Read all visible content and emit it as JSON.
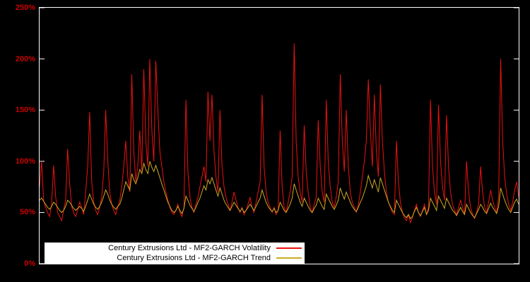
{
  "chart_data": {
    "type": "line",
    "title": "",
    "xlabel": "",
    "ylabel": "",
    "ylim": [
      0,
      250
    ],
    "grid": false,
    "background_color": "#000000",
    "frame_color": "#ffffff",
    "axis_label_color": "#cc0000",
    "yticks": [
      {
        "value": 0,
        "label": "0%"
      },
      {
        "value": 50,
        "label": "50%"
      },
      {
        "value": 100,
        "label": "100%"
      },
      {
        "value": 150,
        "label": "150%"
      },
      {
        "value": 200,
        "label": "200%"
      },
      {
        "value": 250,
        "label": "250%"
      }
    ],
    "legend": {
      "position": "bottom-left-inside",
      "background": "#ffffff",
      "entries": [
        {
          "label": "Century Extrusions Ltd - MF2-GARCH Volatility",
          "color": "#ee1111"
        },
        {
          "label": "Century Extrusions Ltd - MF2-GARCH Trend",
          "color": "#ccaa22"
        }
      ]
    },
    "series": [
      {
        "name": "Century Extrusions Ltd - MF2-GARCH Volatility",
        "color": "#ee1111",
        "unit": "%",
        "values": [
          75,
          100,
          62,
          55,
          50,
          46,
          58,
          96,
          66,
          50,
          46,
          42,
          52,
          62,
          112,
          78,
          56,
          50,
          46,
          52,
          60,
          55,
          48,
          70,
          95,
          148,
          80,
          60,
          52,
          48,
          55,
          65,
          90,
          150,
          100,
          70,
          58,
          52,
          48,
          55,
          62,
          75,
          95,
          120,
          85,
          70,
          185,
          110,
          80,
          95,
          130,
          90,
          190,
          120,
          95,
          200,
          130,
          100,
          198,
          150,
          110,
          95,
          80,
          70,
          62,
          55,
          50,
          48,
          52,
          58,
          50,
          46,
          55,
          160,
          90,
          65,
          55,
          50,
          58,
          65,
          75,
          85,
          95,
          80,
          168,
          120,
          165,
          110,
          85,
          70,
          150,
          95,
          75,
          65,
          58,
          52,
          60,
          70,
          62,
          55,
          50,
          55,
          48,
          52,
          58,
          65,
          55,
          50,
          60,
          70,
          80,
          165,
          95,
          70,
          60,
          55,
          50,
          55,
          48,
          52,
          130,
          75,
          55,
          50,
          60,
          70,
          85,
          215,
          120,
          85,
          70,
          60,
          135,
          90,
          70,
          55,
          50,
          58,
          65,
          140,
          95,
          70,
          60,
          160,
          100,
          75,
          60,
          55,
          65,
          80,
          185,
          120,
          90,
          150,
          95,
          70,
          60,
          55,
          50,
          58,
          70,
          85,
          100,
          120,
          180,
          130,
          95,
          165,
          110,
          85,
          175,
          120,
          90,
          70,
          60,
          55,
          50,
          48,
          120,
          80,
          60,
          50,
          45,
          42,
          48,
          40,
          45,
          52,
          58,
          50,
          46,
          52,
          58,
          48,
          55,
          160,
          95,
          70,
          58,
          155,
          100,
          75,
          62,
          145,
          95,
          70,
          58,
          52,
          48,
          55,
          62,
          55,
          48,
          100,
          70,
          55,
          48,
          44,
          50,
          58,
          95,
          70,
          55,
          50,
          60,
          72,
          62,
          55,
          50,
          65,
          200,
          120,
          85,
          68,
          58,
          52,
          60,
          72,
          80,
          65
        ]
      },
      {
        "name": "Century Extrusions Ltd - MF2-GARCH Trend",
        "color": "#ccaa22",
        "unit": "%",
        "values": [
          62,
          64,
          61,
          58,
          55,
          53,
          56,
          60,
          58,
          55,
          52,
          50,
          52,
          56,
          62,
          60,
          57,
          54,
          52,
          54,
          56,
          54,
          51,
          56,
          62,
          68,
          63,
          58,
          55,
          53,
          56,
          60,
          66,
          72,
          68,
          62,
          58,
          55,
          53,
          56,
          58,
          64,
          72,
          80,
          76,
          72,
          88,
          82,
          78,
          84,
          92,
          88,
          98,
          92,
          88,
          100,
          94,
          90,
          96,
          90,
          84,
          78,
          72,
          66,
          60,
          56,
          52,
          50,
          52,
          56,
          52,
          49,
          54,
          66,
          62,
          57,
          54,
          51,
          55,
          60,
          64,
          70,
          76,
          72,
          82,
          78,
          84,
          78,
          72,
          66,
          74,
          68,
          62,
          58,
          55,
          52,
          56,
          60,
          57,
          54,
          51,
          54,
          50,
          52,
          55,
          58,
          55,
          52,
          56,
          60,
          64,
          72,
          66,
          60,
          56,
          53,
          51,
          54,
          50,
          52,
          60,
          56,
          52,
          50,
          54,
          58,
          64,
          78,
          72,
          66,
          60,
          56,
          64,
          60,
          56,
          52,
          50,
          54,
          57,
          64,
          60,
          56,
          53,
          68,
          64,
          60,
          56,
          53,
          57,
          62,
          74,
          68,
          63,
          70,
          65,
          60,
          56,
          53,
          51,
          55,
          60,
          64,
          70,
          76,
          86,
          80,
          74,
          82,
          76,
          70,
          84,
          78,
          72,
          66,
          60,
          56,
          52,
          50,
          62,
          58,
          54,
          50,
          47,
          45,
          48,
          44,
          46,
          51,
          55,
          50,
          47,
          51,
          55,
          48,
          52,
          64,
          60,
          56,
          52,
          66,
          62,
          58,
          54,
          64,
          60,
          56,
          52,
          50,
          47,
          51,
          55,
          51,
          48,
          58,
          54,
          50,
          47,
          45,
          49,
          53,
          58,
          55,
          51,
          49,
          54,
          59,
          55,
          52,
          49,
          56,
          74,
          68,
          62,
          57,
          53,
          50,
          55,
          60,
          63,
          58
        ]
      }
    ]
  }
}
